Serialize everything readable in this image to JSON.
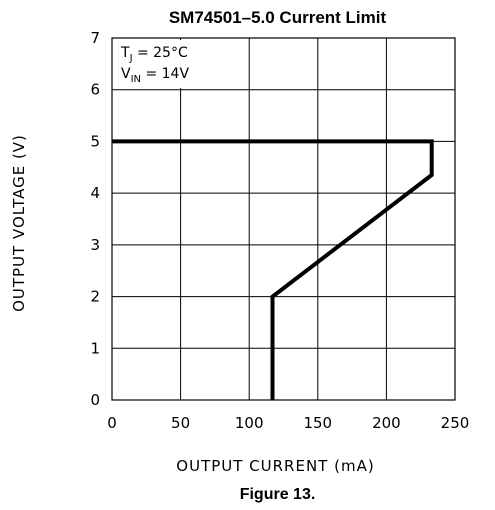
{
  "chart_data": {
    "type": "line",
    "title": "SM74501–5.0 Current Limit",
    "xlabel": "OUTPUT CURRENT (mA)",
    "ylabel": "OUTPUT VOLTAGE (V)",
    "xlim": [
      0,
      250
    ],
    "ylim": [
      0,
      7
    ],
    "x_ticks": [
      "0",
      "50",
      "100",
      "150",
      "200",
      "250"
    ],
    "y_ticks": [
      "0",
      "1",
      "2",
      "3",
      "4",
      "5",
      "6",
      "7"
    ],
    "grid": true,
    "annotations": [
      {
        "main": "T",
        "sub": "J",
        "rest": " = 25°C"
      },
      {
        "main": "V",
        "sub": "IN",
        "rest": " = 14V"
      }
    ],
    "series": [
      {
        "values": [
          {
            "x": 0,
            "y": 5.0
          },
          {
            "x": 233,
            "y": 5.0
          },
          {
            "x": 233,
            "y": 4.35
          },
          {
            "x": 117,
            "y": 2.0
          },
          {
            "x": 117,
            "y": 0
          }
        ]
      }
    ]
  },
  "caption": "Figure 13."
}
